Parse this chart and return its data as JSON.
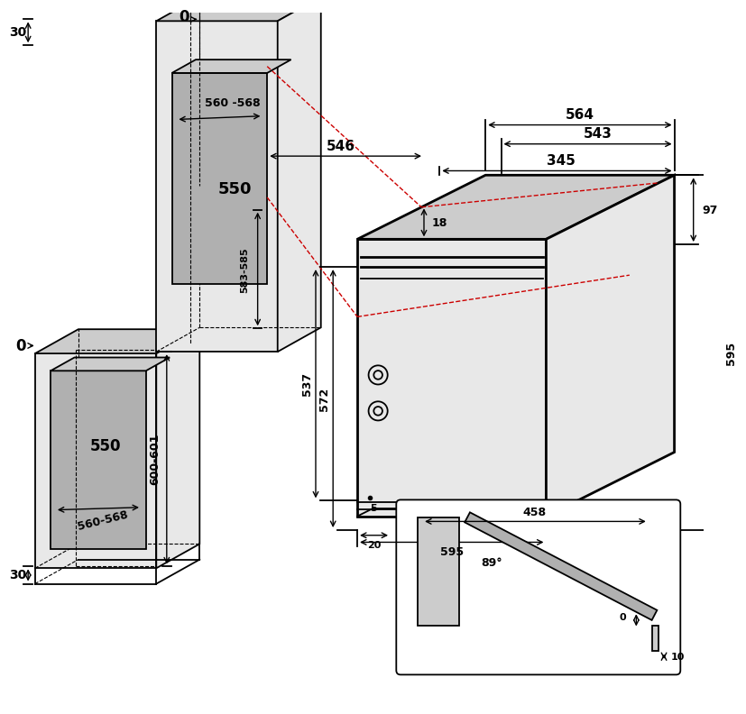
{
  "bg": "#ffffff",
  "lc": "#000000",
  "rc": "#cc0000",
  "gray1": "#b0b0b0",
  "gray2": "#cccccc",
  "gray3": "#e8e8e8",
  "annotations": {
    "top_zero": "0",
    "left_zero": "0",
    "d30_top": "30",
    "d30_bot": "30",
    "d583": "583-585",
    "d560_568_up": "560 -568",
    "d550_up": "550",
    "d600": "600-601",
    "d560_568_dn": "560-568",
    "d550_dn": "550",
    "d564": "564",
    "d543": "543",
    "d546": "546",
    "d345": "345",
    "d18": "18",
    "d537": "537",
    "d572": "572",
    "d97": "97",
    "d595_r": "595",
    "d595_b": "595",
    "d5": "5",
    "d20": "20",
    "d458": "458",
    "d89": "89°",
    "d0_ins": "0",
    "d10": "10"
  }
}
